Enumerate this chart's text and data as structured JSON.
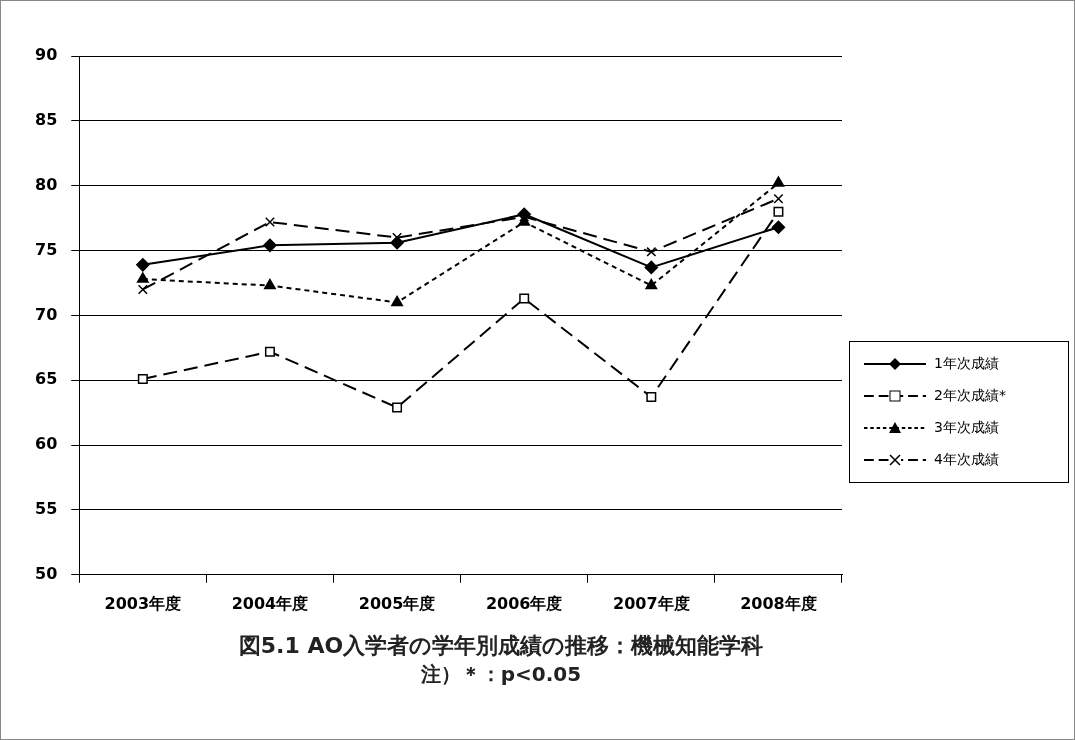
{
  "chart_data": {
    "type": "line",
    "title": "図5.1 AO入学者の学年別成績の推移：機械知能学科",
    "annotations": [
      "注）＊：p<0.05"
    ],
    "categories": [
      "2003年度",
      "2004年度",
      "2005年度",
      "2006年度",
      "2007年度",
      "2008年度"
    ],
    "series": [
      {
        "name": "1年次成績",
        "color": "#000000",
        "marker": "diamond",
        "line_style": "solid",
        "values": [
          73.9,
          75.4,
          75.6,
          77.8,
          73.7,
          76.8
        ]
      },
      {
        "name": "2年次成績*",
        "color": "#000000",
        "marker": "square",
        "line_style": "dashed",
        "values": [
          65.1,
          67.2,
          62.9,
          71.3,
          63.7,
          78.0
        ]
      },
      {
        "name": "3年次成績",
        "color": "#000000",
        "marker": "triangle",
        "line_style": "dotted",
        "values": [
          72.8,
          72.3,
          71.0,
          77.2,
          72.3,
          80.2
        ]
      },
      {
        "name": "4年次成績",
        "color": "#000000",
        "marker": "cross",
        "line_style": "dashed",
        "values": [
          72.0,
          77.2,
          76.0,
          77.6,
          74.9,
          79.0
        ]
      }
    ],
    "ylim": [
      50,
      90
    ],
    "yticks": [
      50,
      55,
      60,
      65,
      70,
      75,
      80,
      85,
      90
    ],
    "grid": "y",
    "legend": "right"
  }
}
